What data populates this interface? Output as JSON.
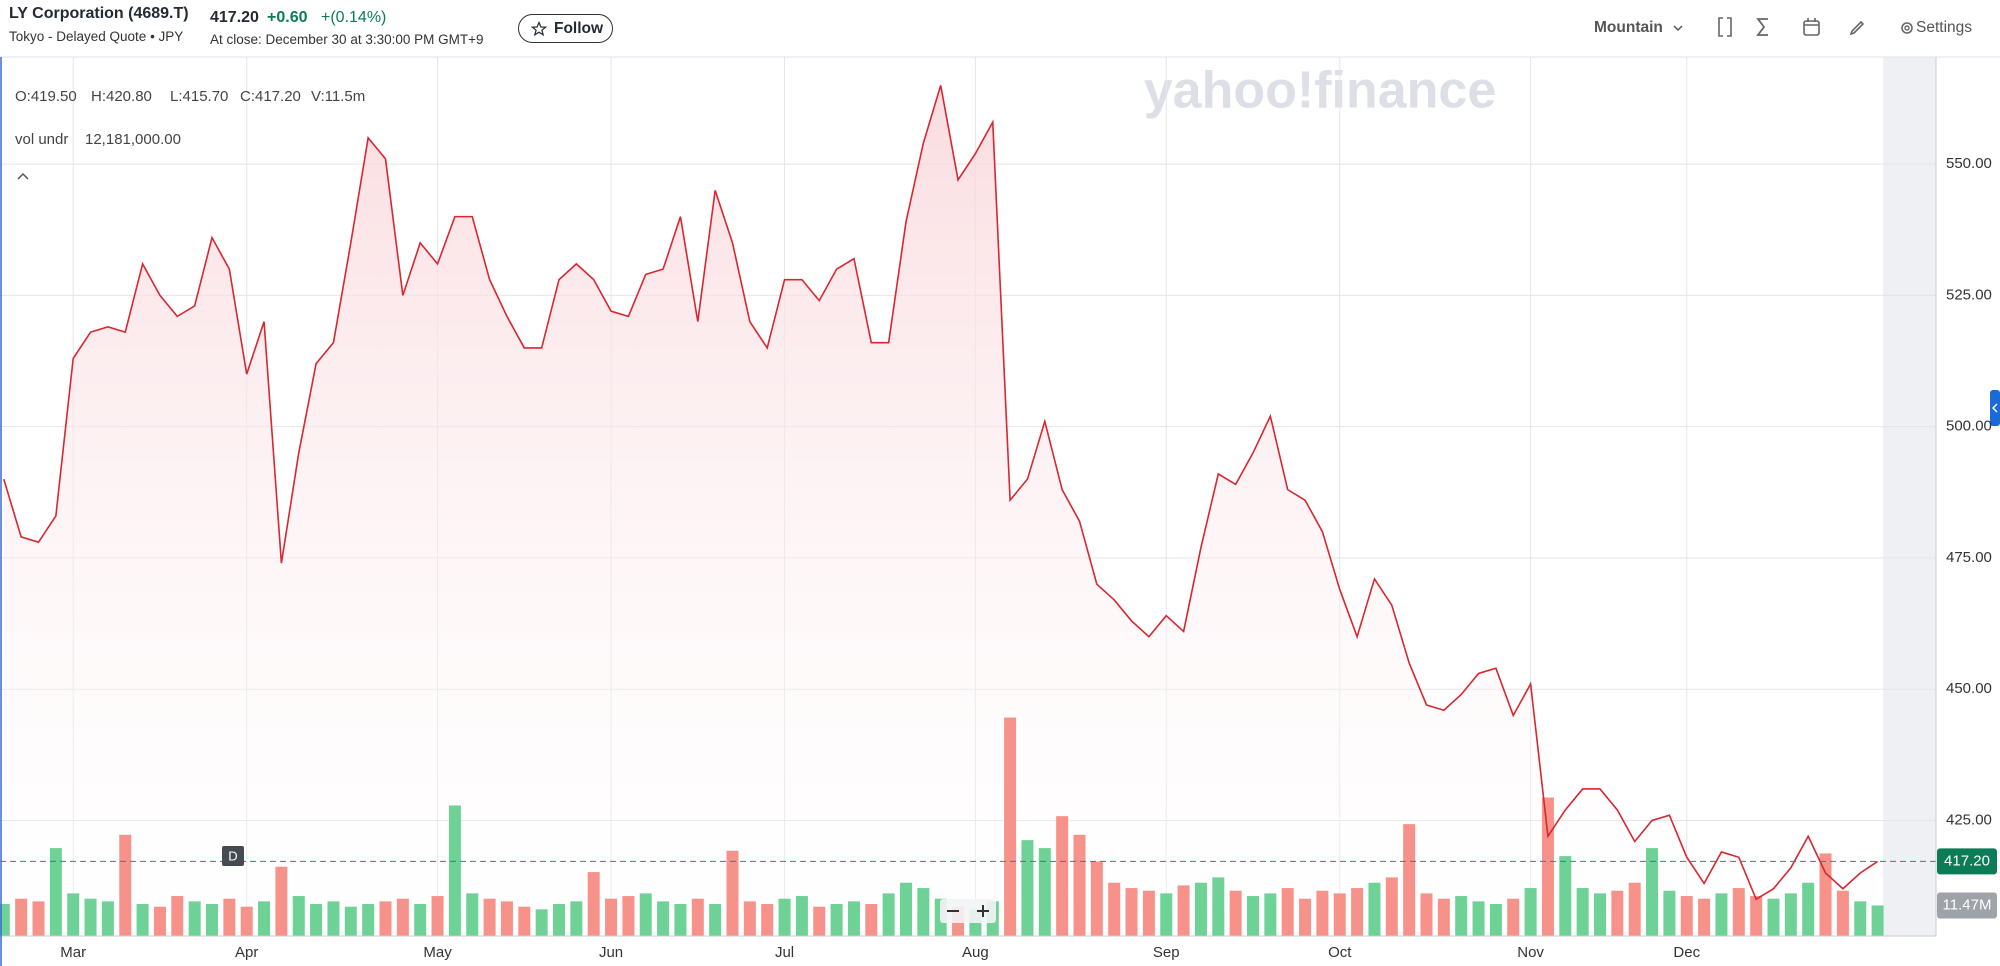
{
  "header": {
    "title": "LY Corporation (4689.T)",
    "subtitle": "Tokyo - Delayed Quote • JPY",
    "price": "417.20",
    "change": "+0.60",
    "change_pct": "+(0.14%)",
    "close_note": "At close: December 30 at 3:30:00 PM GMT+9",
    "follow": "Follow",
    "chart_style": "Mountain",
    "settings": "Settings"
  },
  "chart_data": {
    "type": "line",
    "watermark": "yahoo!finance",
    "ohlc": [
      "O:419.50",
      "H:420.80",
      "L:415.70",
      "C:417.20",
      "V:11.5m"
    ],
    "indicator": {
      "name": "vol undr",
      "value": "12,181,000.00"
    },
    "interval": "D",
    "categories": [
      null,
      null,
      null,
      null,
      "Mar",
      null,
      null,
      null,
      null,
      null,
      null,
      null,
      null,
      null,
      "Apr",
      null,
      null,
      null,
      null,
      null,
      null,
      null,
      null,
      null,
      null,
      "May",
      null,
      null,
      null,
      null,
      null,
      null,
      null,
      null,
      null,
      "Jun",
      null,
      null,
      null,
      null,
      null,
      null,
      null,
      null,
      null,
      "Jul",
      null,
      null,
      null,
      null,
      null,
      null,
      null,
      null,
      null,
      null,
      "Aug",
      null,
      null,
      null,
      null,
      null,
      null,
      null,
      null,
      null,
      null,
      "Sep",
      null,
      null,
      null,
      null,
      null,
      null,
      null,
      null,
      null,
      "Oct",
      null,
      null,
      null,
      null,
      null,
      null,
      null,
      null,
      null,
      null,
      "Nov",
      null,
      null,
      null,
      null,
      null,
      null,
      null,
      null,
      "Dec",
      null,
      null,
      null,
      null,
      null,
      null,
      null,
      null,
      null,
      null,
      null
    ],
    "series": [
      {
        "color": "#d9262f",
        "values": [
          490,
          479,
          478,
          483,
          513,
          518,
          519,
          518,
          531,
          525,
          521,
          523,
          536,
          530,
          510,
          520,
          474,
          495,
          512,
          516,
          535,
          555,
          551,
          525,
          535,
          531,
          540,
          540,
          528,
          521,
          515,
          515,
          528,
          531,
          528,
          522,
          521,
          529,
          530,
          540,
          520,
          545,
          535,
          520,
          515,
          528,
          528,
          524,
          530,
          532,
          516,
          516,
          539,
          554,
          565,
          547,
          552,
          558,
          486,
          490,
          501,
          488,
          482,
          470,
          467,
          463,
          460,
          464,
          461,
          477,
          491,
          489,
          495,
          502,
          488,
          486,
          480,
          469,
          460,
          471,
          466,
          455,
          447,
          446,
          449,
          453,
          454,
          445,
          451,
          422,
          427,
          431,
          431,
          427,
          421,
          425,
          426,
          418,
          413,
          419,
          418,
          410,
          412,
          416,
          422,
          415,
          412,
          415,
          417.2
        ]
      },
      {
        "type": "bar",
        "axis": "y2",
        "up_color": "#6ed196",
        "down_color": "#f7928a",
        "values": [
          12,
          14,
          13,
          33,
          16,
          14,
          13,
          38,
          12,
          11,
          15,
          13,
          12,
          14,
          11,
          13,
          26,
          15,
          12,
          13,
          11,
          12,
          13,
          14,
          12,
          15,
          49,
          16,
          14,
          13,
          11,
          10,
          12,
          13,
          24,
          14,
          15,
          16,
          13,
          12,
          14,
          12,
          32,
          13,
          12,
          14,
          15,
          11,
          12,
          13,
          12,
          16,
          20,
          18,
          14,
          11,
          10,
          13,
          82,
          36,
          33,
          45,
          38,
          28,
          20,
          18,
          17,
          16,
          19,
          20,
          22,
          17,
          15,
          16,
          18,
          14,
          17,
          16,
          18,
          20,
          22,
          42,
          16,
          14,
          15,
          13,
          12,
          14,
          18,
          52,
          30,
          18,
          16,
          17,
          20,
          33,
          17,
          15,
          14,
          16,
          18,
          15,
          14,
          16,
          20,
          31,
          17,
          13,
          11.47
        ]
      }
    ],
    "ylim": [
      403,
      570.4
    ],
    "yticks": [
      {
        "value": 425,
        "label": "425.00"
      },
      {
        "value": 450,
        "label": "450.00"
      },
      {
        "value": 475,
        "label": "475.00"
      },
      {
        "value": 500,
        "label": "500.00"
      },
      {
        "value": 525,
        "label": "525.00"
      },
      {
        "value": 550,
        "label": "550.00"
      }
    ],
    "y2lim": [
      0,
      330
    ],
    "y2ticks": [
      {
        "value": 11.47,
        "label": "11.47M"
      }
    ],
    "last_price": {
      "value": 417.2,
      "label": "417.20"
    },
    "grid": true
  }
}
